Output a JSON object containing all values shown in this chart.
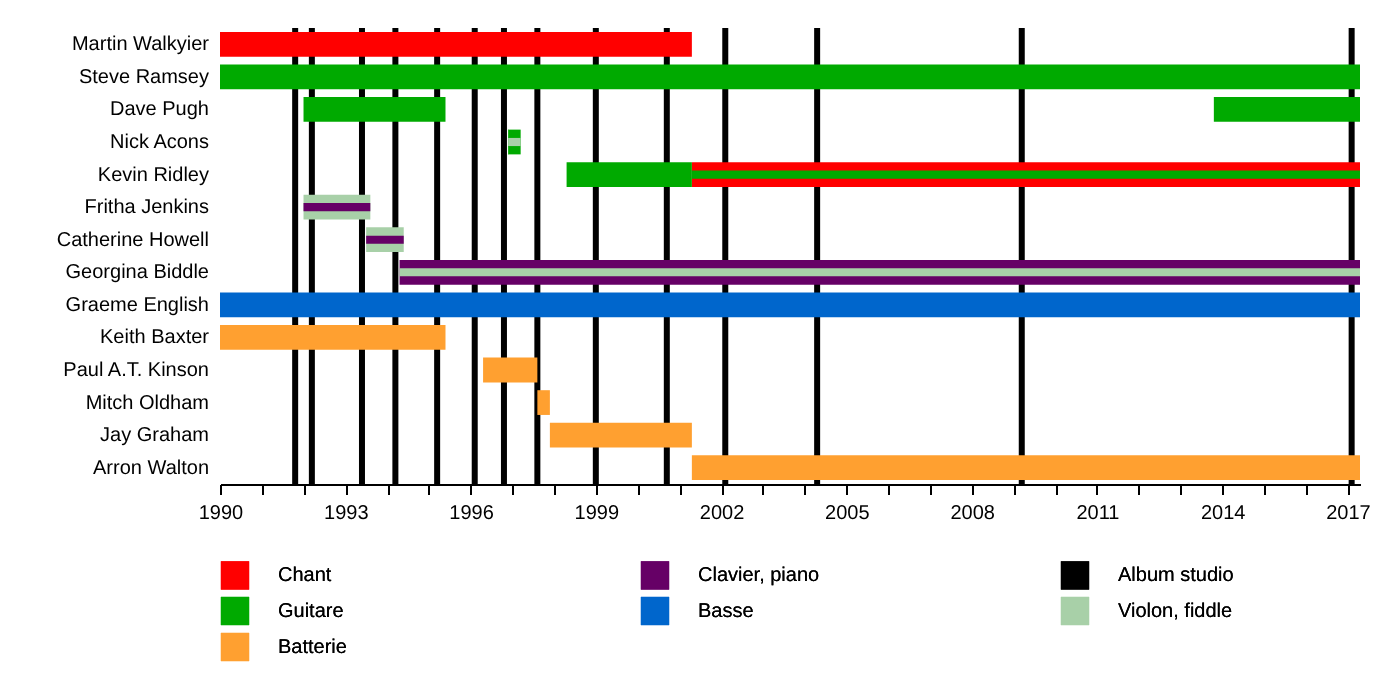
{
  "chart_data": {
    "type": "bar",
    "orientation": "horizontal",
    "categories": [
      "Martin Walkyier",
      "Steve Ramsey",
      "Dave Pugh",
      "Nick Acons",
      "Kevin Ridley",
      "Fritha Jenkins",
      "Catherine Howell",
      "Georgina Biddle",
      "Graeme English",
      "Keith Baxter",
      "Paul A.T. Kinson",
      "Mitch Oldham",
      "Jay Graham",
      "Arron Walton"
    ],
    "series": [
      {
        "name": "Chant",
        "color": "#ff0000",
        "values": [
          11.3,
          null,
          null,
          null,
          16.0,
          null,
          null,
          null,
          null,
          null,
          null,
          null,
          null,
          null
        ],
        "base": [
          1990,
          null,
          null,
          null,
          2001.3,
          null,
          null,
          null,
          null,
          null,
          null,
          null,
          null,
          null
        ]
      },
      {
        "name": "Guitare",
        "color": "#00aa00",
        "values": [
          null,
          27.3,
          3.4,
          0.3,
          3.0,
          null,
          null,
          null,
          null,
          null,
          null,
          null,
          null,
          null
        ],
        "base": [
          null,
          1990,
          1992,
          1996.9,
          1998.3,
          null,
          null,
          null,
          null,
          null,
          null,
          null,
          null,
          null
        ]
      },
      {
        "color": "#00aa00",
        "values": [
          null,
          null,
          3.5,
          null,
          16.0,
          null,
          null,
          null,
          null,
          null,
          null,
          null,
          null,
          null
        ],
        "base": [
          null,
          null,
          2013.8,
          null,
          2001.3,
          null,
          null,
          null,
          null,
          null,
          null,
          null,
          null,
          null
        ]
      },
      {
        "name": "Violon, fiddle",
        "color": "#a8d0a8",
        "values": [
          null,
          null,
          null,
          null,
          null,
          1.6,
          0.9,
          null,
          null,
          null,
          null,
          null,
          null,
          null
        ],
        "base": [
          null,
          null,
          null,
          null,
          null,
          1992,
          1993.5,
          null,
          null,
          null,
          null,
          null,
          null,
          null
        ]
      },
      {
        "name": "Clavier, piano",
        "color": "#660066",
        "values": [
          null,
          null,
          null,
          null,
          null,
          1.6,
          0.9,
          23.0,
          null,
          null,
          null,
          null,
          null,
          null
        ],
        "base": [
          null,
          null,
          null,
          null,
          null,
          1992,
          1993.5,
          1994.3,
          null,
          null,
          null,
          null,
          null,
          null
        ]
      },
      {
        "color": "#a8d0a8",
        "values": [
          null,
          null,
          null,
          0.3,
          null,
          null,
          null,
          23.0,
          null,
          null,
          null,
          null,
          null,
          null
        ],
        "base": [
          null,
          null,
          null,
          1996.9,
          null,
          null,
          null,
          1994.3,
          null,
          null,
          null,
          null,
          null,
          null
        ]
      },
      {
        "name": "Basse",
        "color": "#0066cc",
        "values": [
          null,
          null,
          null,
          null,
          null,
          null,
          null,
          null,
          27.3,
          null,
          null,
          null,
          null,
          null
        ],
        "base": [
          null,
          null,
          null,
          null,
          null,
          null,
          null,
          null,
          1990,
          null,
          null,
          null,
          null,
          null
        ]
      },
      {
        "name": "Batterie",
        "color": "#ffa030",
        "values": [
          null,
          null,
          null,
          null,
          null,
          null,
          null,
          null,
          null,
          5.4,
          1.3,
          0.3,
          3.4,
          16.0
        ],
        "base": [
          null,
          null,
          null,
          null,
          null,
          null,
          null,
          null,
          null,
          1990,
          1996.3,
          1997.6,
          1997.9,
          2001.3
        ]
      }
    ],
    "ref_lines": [
      {
        "axis": "x",
        "value": 1991.8,
        "color": "#000000",
        "label": "Album studio"
      },
      {
        "axis": "x",
        "value": 1992.2,
        "color": "#000000"
      },
      {
        "axis": "x",
        "value": 1993.4,
        "color": "#000000"
      },
      {
        "axis": "x",
        "value": 1994.2,
        "color": "#000000"
      },
      {
        "axis": "x",
        "value": 1995.2,
        "color": "#000000"
      },
      {
        "axis": "x",
        "value": 1996.1,
        "color": "#000000"
      },
      {
        "axis": "x",
        "value": 1996.8,
        "color": "#000000"
      },
      {
        "axis": "x",
        "value": 1997.6,
        "color": "#000000"
      },
      {
        "axis": "x",
        "value": 1999.0,
        "color": "#000000"
      },
      {
        "axis": "x",
        "value": 2000.7,
        "color": "#000000"
      },
      {
        "axis": "x",
        "value": 2002.1,
        "color": "#000000"
      },
      {
        "axis": "x",
        "value": 2004.3,
        "color": "#000000"
      },
      {
        "axis": "x",
        "value": 2009.2,
        "color": "#000000"
      },
      {
        "axis": "x",
        "value": 2017.1,
        "color": "#000000"
      }
    ],
    "xlim": [
      1990,
      2017.3
    ],
    "xticks": [
      1990,
      {
        "value": 1991,
        "label": null
      },
      {
        "value": 1992,
        "label": null
      },
      1993,
      {
        "value": 1994,
        "label": null
      },
      {
        "value": 1995,
        "label": null
      },
      1996,
      {
        "value": 1997,
        "label": null
      },
      {
        "value": 1998,
        "label": null
      },
      1999,
      {
        "value": 2000,
        "label": null
      },
      {
        "value": 2001,
        "label": null
      },
      2002,
      {
        "value": 2003,
        "label": null
      },
      {
        "value": 2004,
        "label": null
      },
      2005,
      {
        "value": 2006,
        "label": null
      },
      {
        "value": 2007,
        "label": null
      },
      2008,
      {
        "value": 2009,
        "label": null
      },
      {
        "value": 2010,
        "label": null
      },
      2011,
      {
        "value": 2012,
        "label": null
      },
      {
        "value": 2013,
        "label": null
      },
      2014,
      {
        "value": 2015,
        "label": null
      },
      {
        "value": 2016,
        "label": null
      },
      2017
    ],
    "grid": false,
    "legend": "bottom"
  }
}
